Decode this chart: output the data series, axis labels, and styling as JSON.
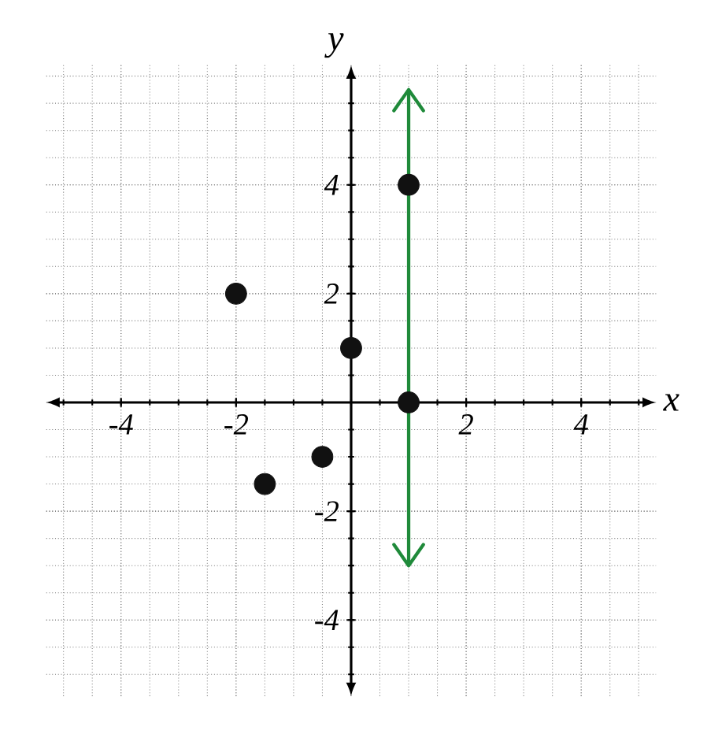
{
  "chart_data": {
    "type": "scatter",
    "xlabel": "x",
    "ylabel": "y",
    "xlim": [
      -5.3,
      5.3
    ],
    "ylim": [
      -5.4,
      6.2
    ],
    "xticks": [
      -4,
      -2,
      2,
      4
    ],
    "yticks": [
      -4,
      -2,
      2,
      4
    ],
    "grid": true,
    "series": [
      {
        "color": "#111111",
        "x": [
          -2,
          -1.5,
          -0.5,
          0,
          1,
          1
        ],
        "values": [
          2,
          -1.5,
          -1,
          1,
          4,
          0
        ],
        "marker": "circle"
      },
      {
        "type": "line",
        "color": "#1f8a3a",
        "x": [
          1,
          1
        ],
        "values": [
          -3,
          5.75
        ],
        "marker": "none"
      }
    ]
  }
}
